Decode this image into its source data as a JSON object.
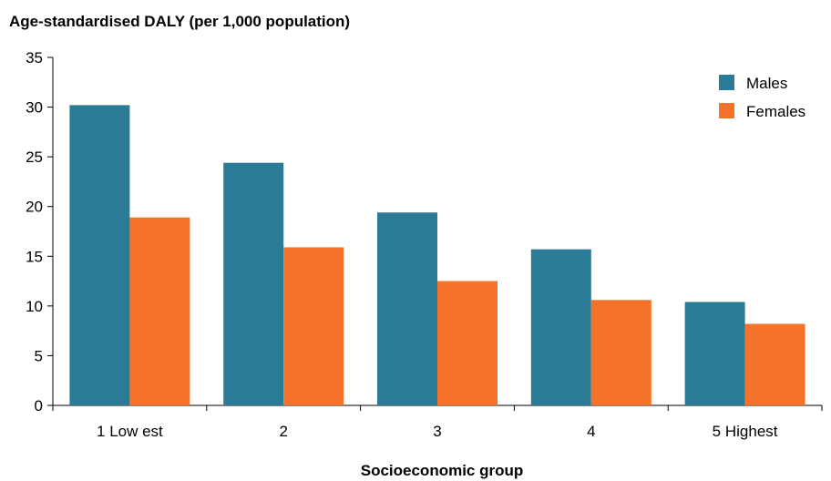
{
  "chart_data": {
    "type": "bar",
    "title": "Age-standardised DALY (per 1,000 population)",
    "xlabel": "Socioeconomic group",
    "ylabel": "",
    "categories": [
      "1 Low est",
      "2",
      "3",
      "4",
      "5 Highest"
    ],
    "series": [
      {
        "name": "Males",
        "color": "#2b7b96",
        "values": [
          30.2,
          24.4,
          19.4,
          15.7,
          10.4
        ]
      },
      {
        "name": "Females",
        "color": "#f47328",
        "values": [
          18.9,
          15.9,
          12.5,
          10.6,
          8.2
        ]
      }
    ],
    "ylim": [
      0,
      35
    ],
    "yticks": [
      0,
      5,
      10,
      15,
      20,
      25,
      30,
      35
    ],
    "grid": false,
    "legend_position": "top-right"
  }
}
